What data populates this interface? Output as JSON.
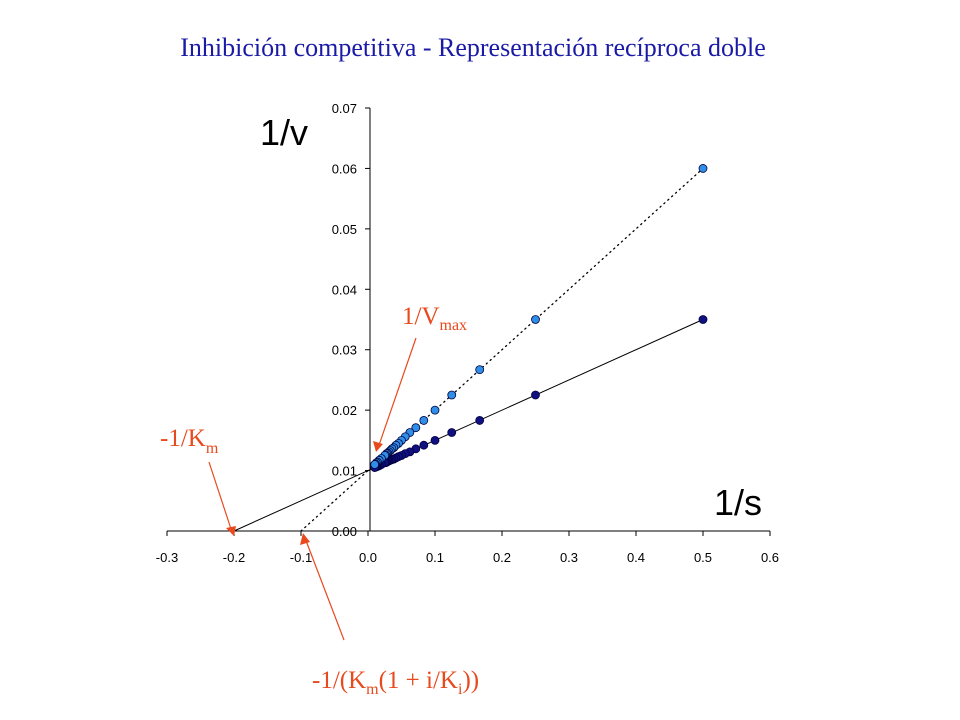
{
  "title": "Inhibición competitiva - Representación recíproca doble",
  "chart_data": {
    "type": "scatter",
    "xlabel": "1/s",
    "ylabel": "1/v",
    "xlim": [
      -0.3,
      0.6
    ],
    "ylim": [
      0,
      0.07
    ],
    "x_ticks": [
      "-0.3",
      "-0.2",
      "-0.1",
      "0.0",
      "0.1",
      "0.2",
      "0.3",
      "0.4",
      "0.5",
      "0.6"
    ],
    "y_ticks": [
      "0.00",
      "0.01",
      "0.02",
      "0.03",
      "0.04",
      "0.05",
      "0.06",
      "0.07"
    ],
    "grid": false,
    "series": [
      {
        "color": "#2f8fe8",
        "line_style": "dotted",
        "line": {
          "x_intercept": -0.1,
          "y_intercept": 0.01
        },
        "x": [
          0.5,
          0.25,
          0.1667,
          0.125,
          0.1,
          0.0833,
          0.0714,
          0.0625,
          0.0556,
          0.05,
          0.0455,
          0.0417,
          0.0385,
          0.0357,
          0.0333,
          0.03125,
          0.0294,
          0.0278,
          0.0263,
          0.025,
          0.02,
          0.0167,
          0.0143,
          0.0125,
          0.0111,
          0.01
        ],
        "y": [
          0.06,
          0.035,
          0.0267,
          0.0225,
          0.02,
          0.0183,
          0.0171,
          0.0163,
          0.0156,
          0.015,
          0.0145,
          0.0142,
          0.0138,
          0.0136,
          0.0133,
          0.0131,
          0.0129,
          0.0128,
          0.0126,
          0.0125,
          0.012,
          0.0117,
          0.0114,
          0.0113,
          0.0111,
          0.011
        ]
      },
      {
        "color": "#101080",
        "line_style": "solid",
        "line": {
          "x_intercept": -0.2,
          "y_intercept": 0.01
        },
        "x": [
          0.5,
          0.25,
          0.1667,
          0.125,
          0.1,
          0.0833,
          0.0714,
          0.0625,
          0.0556,
          0.05,
          0.0455,
          0.0417,
          0.0385,
          0.0357,
          0.0333,
          0.03125,
          0.0294,
          0.0278,
          0.0263,
          0.025,
          0.02,
          0.0167,
          0.0143,
          0.0125,
          0.0111,
          0.01
        ],
        "y": [
          0.035,
          0.0225,
          0.0183,
          0.0163,
          0.015,
          0.0142,
          0.0136,
          0.0131,
          0.0128,
          0.0125,
          0.0123,
          0.0121,
          0.0119,
          0.0118,
          0.0117,
          0.0116,
          0.0115,
          0.0114,
          0.0113,
          0.0113,
          0.011,
          0.0108,
          0.0107,
          0.0106,
          0.0106,
          0.0105
        ]
      }
    ],
    "annotations": [
      {
        "main": "1/V",
        "sub": "max",
        "target_x": 0.01,
        "target_y": 0.0135
      },
      {
        "main": "-1/K",
        "sub": "m",
        "target_x": -0.2,
        "target_y": 0
      },
      {
        "parts": [
          "-1/(K",
          "m",
          "(1 + i/K",
          "i",
          "))"
        ],
        "target_x": -0.1,
        "target_y": 0
      }
    ],
    "colors": {
      "annotation": "#e8491d",
      "title": "#1a1aa6"
    }
  }
}
